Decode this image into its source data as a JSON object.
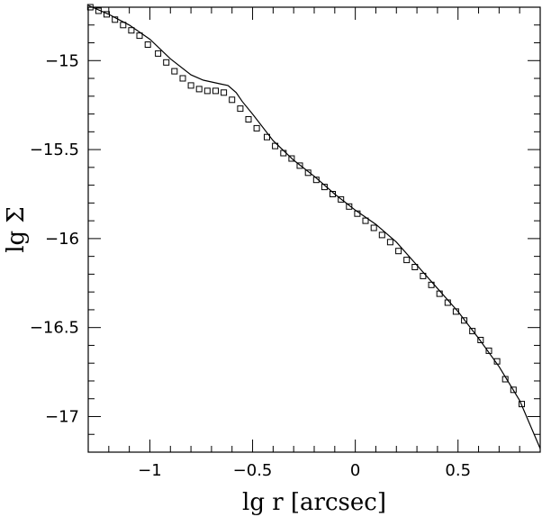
{
  "chart_data": {
    "type": "scatter",
    "xlabel": "lg r [arcsec]",
    "ylabel": "lg Σ",
    "xlim": [
      -1.3,
      0.9
    ],
    "ylim": [
      -17.2,
      -14.7
    ],
    "x_ticks": [
      -1,
      -0.5,
      0,
      0.5
    ],
    "x_tick_labels": [
      "−1",
      "−0.5",
      "0",
      "0.5"
    ],
    "y_ticks": [
      -15,
      -15.5,
      -16,
      -16.5,
      -17
    ],
    "y_tick_labels": [
      "−15",
      "−15.5",
      "−16",
      "−16.5",
      "−17"
    ],
    "grid": false,
    "legend": "none",
    "series": [
      {
        "kind": "points",
        "marker": "square-open",
        "x": [
          -1.29,
          -1.25,
          -1.21,
          -1.17,
          -1.13,
          -1.09,
          -1.05,
          -1.01,
          -0.96,
          -0.92,
          -0.88,
          -0.84,
          -0.8,
          -0.76,
          -0.72,
          -0.68,
          -0.64,
          -0.6,
          -0.56,
          -0.52,
          -0.48,
          -0.43,
          -0.39,
          -0.35,
          -0.31,
          -0.27,
          -0.23,
          -0.19,
          -0.15,
          -0.11,
          -0.07,
          -0.03,
          0.01,
          0.05,
          0.09,
          0.13,
          0.17,
          0.21,
          0.25,
          0.29,
          0.33,
          0.37,
          0.41,
          0.45,
          0.49,
          0.53,
          0.57,
          0.61,
          0.65,
          0.69,
          0.73,
          0.77,
          0.81
        ],
        "y": [
          -14.7,
          -14.72,
          -14.74,
          -14.77,
          -14.8,
          -14.83,
          -14.86,
          -14.91,
          -14.96,
          -15.01,
          -15.06,
          -15.1,
          -15.14,
          -15.16,
          -15.17,
          -15.17,
          -15.18,
          -15.22,
          -15.27,
          -15.33,
          -15.38,
          -15.43,
          -15.48,
          -15.52,
          -15.55,
          -15.59,
          -15.63,
          -15.67,
          -15.71,
          -15.75,
          -15.78,
          -15.82,
          -15.86,
          -15.9,
          -15.94,
          -15.98,
          -16.02,
          -16.07,
          -16.12,
          -16.16,
          -16.21,
          -16.26,
          -16.31,
          -16.36,
          -16.41,
          -16.46,
          -16.52,
          -16.57,
          -16.63,
          -16.69,
          -16.79,
          -16.85,
          -16.93
        ]
      },
      {
        "kind": "line",
        "x": [
          -1.3,
          -1.2,
          -1.1,
          -1.0,
          -0.9,
          -0.8,
          -0.74,
          -0.7,
          -0.66,
          -0.62,
          -0.58,
          -0.55,
          -0.5,
          -0.4,
          -0.3,
          -0.2,
          -0.1,
          0.0,
          0.1,
          0.2,
          0.3,
          0.4,
          0.5,
          0.6,
          0.7,
          0.8,
          0.9
        ],
        "y": [
          -14.69,
          -14.74,
          -14.8,
          -14.88,
          -14.99,
          -15.08,
          -15.11,
          -15.12,
          -15.13,
          -15.14,
          -15.18,
          -15.23,
          -15.3,
          -15.45,
          -15.56,
          -15.65,
          -15.75,
          -15.84,
          -15.92,
          -16.02,
          -16.15,
          -16.28,
          -16.41,
          -16.56,
          -16.72,
          -16.91,
          -17.18
        ]
      }
    ]
  }
}
